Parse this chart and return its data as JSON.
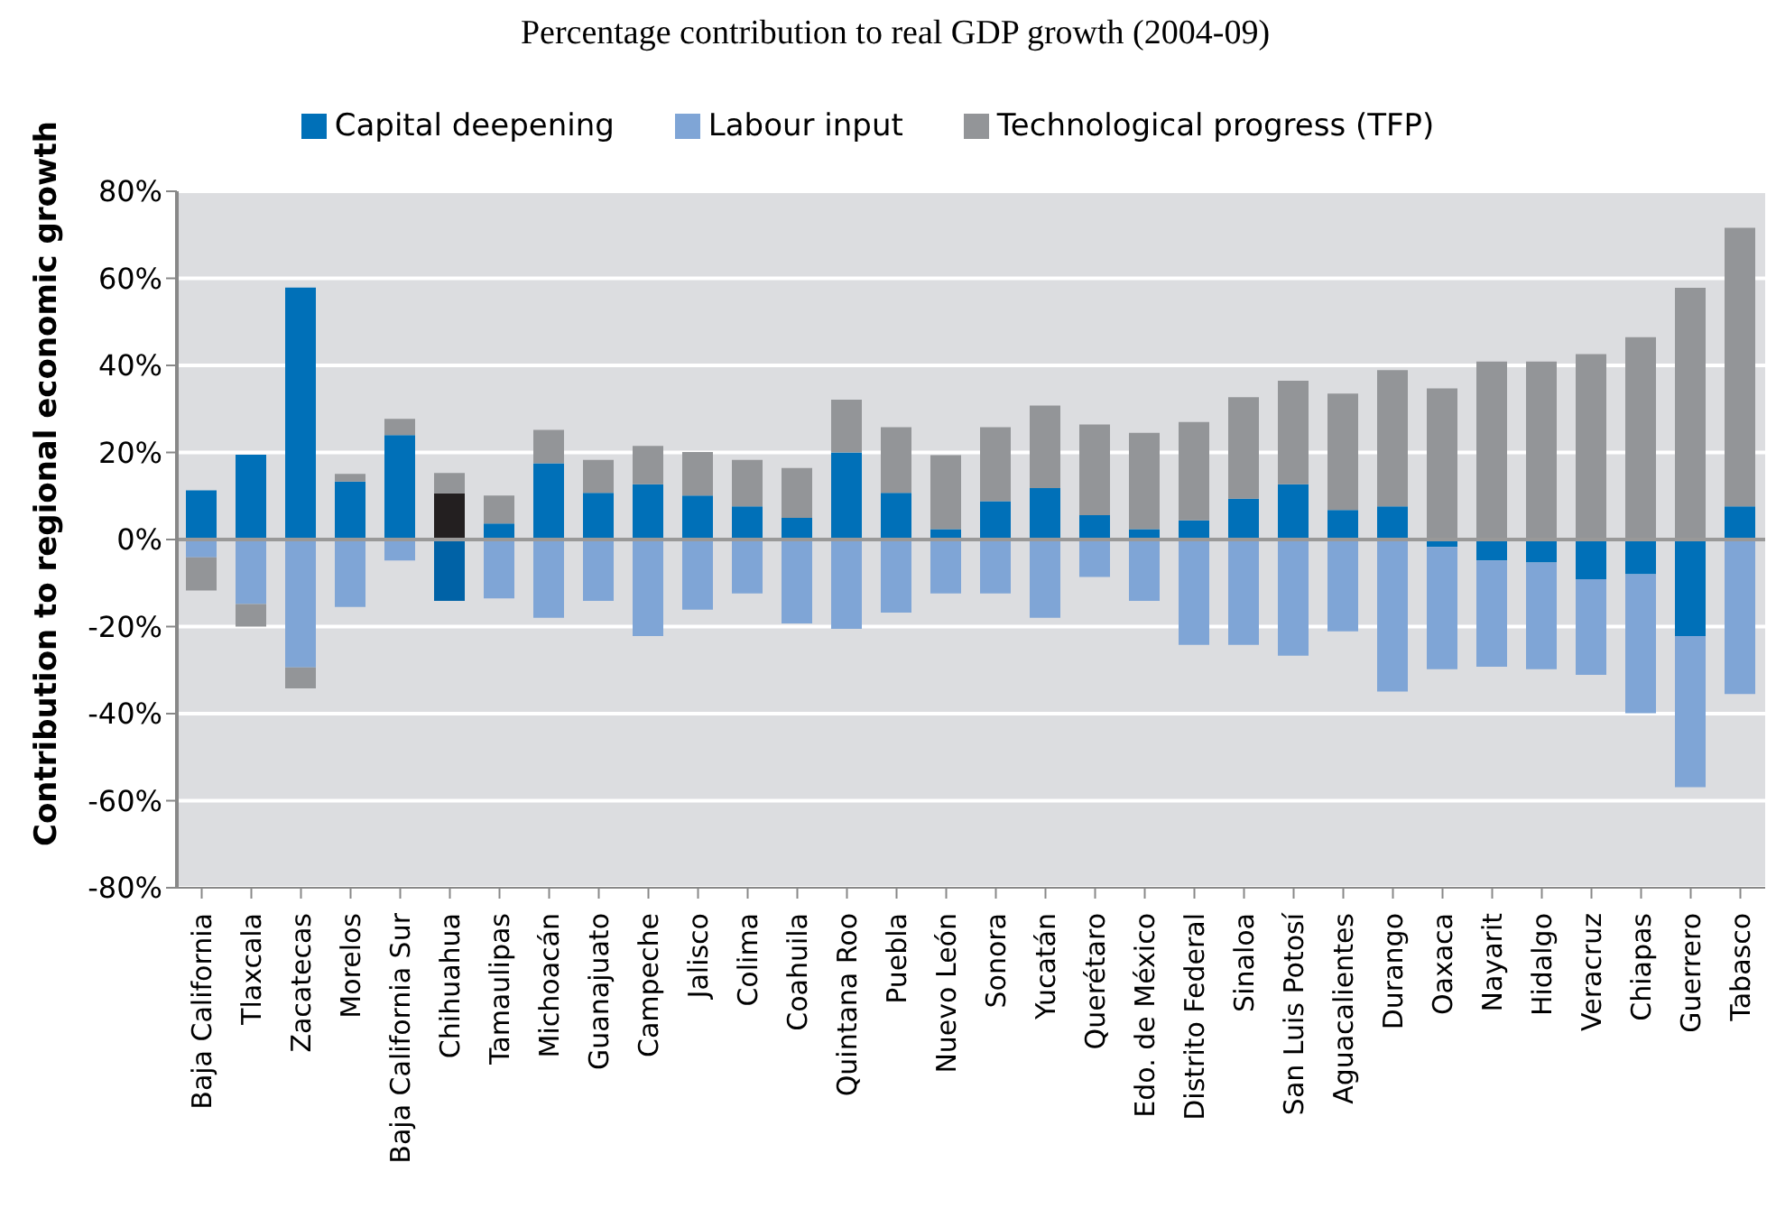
{
  "chart_data": {
    "type": "bar",
    "stacked": true,
    "title": "Percentage contribution to real GDP growth (2004-09)",
    "ylabel": "Contribution to regional economic growth",
    "categories": [
      "Baja California",
      "Tlaxcala",
      "Zacatecas",
      "Morelos",
      "Baja California  Sur",
      "Chihuahua",
      "Tamaulipas",
      "Michoacán",
      "Guanajuato",
      "Campeche",
      "Jalisco",
      "Colima",
      "Coahuila",
      "Quintana Roo",
      "Puebla",
      "Nuevo León",
      "Sonora",
      "Yucatán",
      "Querétaro",
      "Edo. de México",
      "Distrito Federal",
      "Sinaloa",
      "San Luis  Potosí",
      "Aguacalientes",
      "Durango",
      "Oaxaca",
      "Nayarit",
      "Hidalgo",
      "Veracruz",
      "Chiapas",
      "Guerrero",
      "Tabasco"
    ],
    "series": [
      {
        "name": "Capital deepening",
        "color": "#0070b8",
        "colors": [
          "#0070b8",
          "#0070b8",
          "#0070b8",
          "#0070b8",
          "#0070b8",
          "#0062a6",
          "#0070b8",
          "#0070b8",
          "#0070b8",
          "#0070b8",
          "#0070b8",
          "#0070b8",
          "#0070b8",
          "#0070b8",
          "#0070b8",
          "#0070b8",
          "#0070b8",
          "#0070b8",
          "#0070b8",
          "#0070b8",
          "#0070b8",
          "#0070b8",
          "#0070b8",
          "#0070b8",
          "#0070b8",
          "#0070b8",
          "#0070b8",
          "#0070b8",
          "#0070b8",
          "#0070b8",
          "#0070b8",
          "#0070b8"
        ],
        "values": [
          11.3,
          19.5,
          57.9,
          13.3,
          24,
          -14.1,
          3.7,
          17.5,
          10.7,
          12.7,
          10.1,
          7.6,
          5,
          20,
          10.7,
          2.4,
          8.8,
          11.8,
          5.6,
          2.4,
          4.4,
          9.4,
          12.7,
          6.8,
          7.6,
          -1.7,
          -4.8,
          -5.3,
          -9.1,
          -8,
          -22.2,
          7.6
        ]
      },
      {
        "name": "Labour input",
        "color": "#7fa5d6",
        "colors": [
          "#7fa5d6",
          "#7fa5d6",
          "#7fa5d6",
          "#7fa5d6",
          "#7fa5d6",
          "#231f20",
          "#7fa5d6",
          "#7fa5d6",
          "#7fa5d6",
          "#7fa5d6",
          "#7fa5d6",
          "#7fa5d6",
          "#7fa5d6",
          "#7fa5d6",
          "#7fa5d6",
          "#7fa5d6",
          "#7fa5d6",
          "#7fa5d6",
          "#7fa5d6",
          "#7fa5d6",
          "#7fa5d6",
          "#7fa5d6",
          "#7fa5d6",
          "#7fa5d6",
          "#7fa5d6",
          "#7fa5d6",
          "#7fa5d6",
          "#7fa5d6",
          "#7fa5d6",
          "#7fa5d6",
          "#7fa5d6",
          "#7fa5d6"
        ],
        "values": [
          -4.1,
          -14.8,
          -29.4,
          -15.5,
          -4.8,
          10.6,
          -13.5,
          -18,
          -14.1,
          -22.2,
          -16.1,
          -12.4,
          -19.3,
          -20.5,
          -16.8,
          -12.4,
          -12.4,
          -18,
          -8.6,
          -14.1,
          -24.2,
          -24.2,
          -26.7,
          -21.1,
          -34.9,
          -28.1,
          -24.4,
          -24.5,
          -22,
          -31.9,
          -34.7,
          -35.5
        ]
      },
      {
        "name": "Technological progress (TFP)",
        "color": "#939598",
        "values": [
          -7.6,
          -5.2,
          -4.8,
          1.8,
          3.7,
          4.7,
          6.4,
          7.7,
          7.6,
          8.8,
          10,
          10.7,
          11.4,
          12.1,
          15.1,
          17,
          17,
          19,
          20.8,
          22.1,
          22.6,
          23.3,
          23.8,
          26.7,
          31.3,
          34.7,
          40.9,
          40.9,
          42.6,
          46.5,
          57.8,
          64
        ]
      }
    ],
    "ylim": [
      -80,
      80
    ],
    "yticks": [
      {
        "value": -80,
        "label": "-80%"
      },
      {
        "value": -60,
        "label": "-60%"
      },
      {
        "value": -40,
        "label": "-40%"
      },
      {
        "value": -20,
        "label": "-20%"
      },
      {
        "value": 0,
        "label": "0%"
      },
      {
        "value": 20,
        "label": "20%"
      },
      {
        "value": 40,
        "label": "40%"
      },
      {
        "value": 60,
        "label": "60%"
      },
      {
        "value": 80,
        "label": "80%"
      }
    ],
    "grid": "y",
    "legend": "top"
  }
}
